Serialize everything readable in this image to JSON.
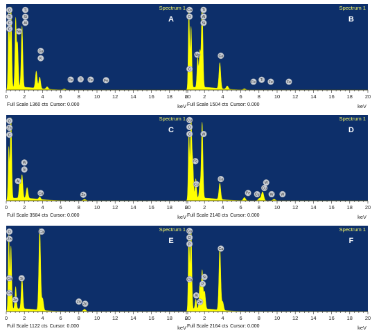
{
  "colors": {
    "plot_bg": "#0d2f6a",
    "spectrum": "#ffff00",
    "spectrum_label": "#ffff66",
    "peak_fill": "#c9cfd8",
    "peak_text": "#2a2a2a",
    "letter": "#ffffff",
    "axis": "#222222"
  },
  "chart_data": [
    {
      "type": "area",
      "panel_letter": "A",
      "title": "Spectrum 1",
      "xlabel": "keV",
      "xlim": [
        0,
        20
      ],
      "x_ticks": [
        "0",
        "2",
        "4",
        "6",
        "8",
        "10",
        "12",
        "14",
        "16",
        "18",
        "20"
      ],
      "status": {
        "full_scale_text": "Full Scale 1360 cts",
        "cursor_text": "Cursor: 0.000"
      },
      "ylim": [
        0,
        1360
      ],
      "peaks": [
        {
          "x": 0.28,
          "y": 1250,
          "w": 0.07
        },
        {
          "x": 0.52,
          "y": 1360,
          "w": 0.08
        },
        {
          "x": 1.04,
          "y": 1120,
          "w": 0.08
        },
        {
          "x": 1.25,
          "y": 700,
          "w": 0.08
        },
        {
          "x": 1.74,
          "y": 1000,
          "w": 0.09
        },
        {
          "x": 3.31,
          "y": 280,
          "w": 0.1
        },
        {
          "x": 3.69,
          "y": 190,
          "w": 0.1
        },
        {
          "x": 4.51,
          "y": 40,
          "w": 0.12
        },
        {
          "x": 6.4,
          "y": 15,
          "w": 0.12
        }
      ],
      "labels": [
        {
          "text": "O",
          "x": 0.35,
          "y": 1310
        },
        {
          "text": "Ti",
          "x": 2.1,
          "y": 1310
        },
        {
          "text": "Ti",
          "x": 0.35,
          "y": 1200
        },
        {
          "text": "Si",
          "x": 2.1,
          "y": 1200
        },
        {
          "text": "C",
          "x": 0.35,
          "y": 1100
        },
        {
          "text": "Al",
          "x": 2.1,
          "y": 1100
        },
        {
          "text": "Na",
          "x": 1.4,
          "y": 960
        },
        {
          "text": "C",
          "x": 0.35,
          "y": 1000
        },
        {
          "text": "Ca",
          "x": 3.8,
          "y": 640
        },
        {
          "text": "K",
          "x": 3.8,
          "y": 520
        },
        {
          "text": "Fe",
          "x": 7.1,
          "y": 170
        },
        {
          "text": "Ti",
          "x": 8.2,
          "y": 175
        },
        {
          "text": "Fe",
          "x": 9.3,
          "y": 170
        },
        {
          "text": "Fe",
          "x": 11.0,
          "y": 160
        }
      ]
    },
    {
      "type": "area",
      "panel_letter": "B",
      "title": "Spectrum 1",
      "xlabel": "keV",
      "xlim": [
        0,
        20
      ],
      "x_ticks": [
        "0",
        "2",
        "4",
        "6",
        "8",
        "10",
        "12",
        "14",
        "16",
        "18",
        "20"
      ],
      "status": {
        "full_scale_text": "Full Scale 1504 cts",
        "cursor_text": "Cursor: 0.000"
      },
      "ylim": [
        0,
        1504
      ],
      "peaks": [
        {
          "x": 0.28,
          "y": 1450,
          "w": 0.07
        },
        {
          "x": 0.52,
          "y": 1100,
          "w": 0.08
        },
        {
          "x": 1.25,
          "y": 540,
          "w": 0.08
        },
        {
          "x": 1.49,
          "y": 640,
          "w": 0.08
        },
        {
          "x": 1.74,
          "y": 1504,
          "w": 0.09
        },
        {
          "x": 3.69,
          "y": 470,
          "w": 0.1
        },
        {
          "x": 4.51,
          "y": 60,
          "w": 0.12
        },
        {
          "x": 6.4,
          "y": 20,
          "w": 0.12
        }
      ],
      "labels": [
        {
          "text": "Ca",
          "x": 0.35,
          "y": 1450
        },
        {
          "text": "Ti",
          "x": 1.9,
          "y": 1450
        },
        {
          "text": "O",
          "x": 0.35,
          "y": 1330
        },
        {
          "text": "Al",
          "x": 1.9,
          "y": 1330
        },
        {
          "text": "Si",
          "x": 1.9,
          "y": 1215
        },
        {
          "text": "Mg",
          "x": 1.2,
          "y": 640
        },
        {
          "text": "C",
          "x": 0.35,
          "y": 380
        },
        {
          "text": "Ca",
          "x": 3.8,
          "y": 620
        },
        {
          "text": "Fe",
          "x": 7.4,
          "y": 150
        },
        {
          "text": "Ti",
          "x": 8.3,
          "y": 185
        },
        {
          "text": "Fe",
          "x": 9.3,
          "y": 150
        },
        {
          "text": "Fe",
          "x": 11.3,
          "y": 150
        }
      ]
    },
    {
      "type": "area",
      "panel_letter": "C",
      "title": "Spectrum 1",
      "xlabel": "keV",
      "xlim": [
        0,
        20
      ],
      "x_ticks": [
        "0",
        "2",
        "4",
        "6",
        "8",
        "10",
        "12",
        "14",
        "16",
        "18",
        "20"
      ],
      "status": {
        "full_scale_text": "Full Scale 3584 cts",
        "cursor_text": "Cursor: 0.000"
      },
      "ylim": [
        0,
        3584
      ],
      "peaks": [
        {
          "x": 0.28,
          "y": 2200,
          "w": 0.07
        },
        {
          "x": 0.52,
          "y": 3584,
          "w": 0.08
        },
        {
          "x": 1.49,
          "y": 750,
          "w": 0.08
        },
        {
          "x": 1.74,
          "y": 1000,
          "w": 0.09
        },
        {
          "x": 2.3,
          "y": 460,
          "w": 0.1
        },
        {
          "x": 3.69,
          "y": 110,
          "w": 0.1
        },
        {
          "x": 8.63,
          "y": 60,
          "w": 0.14
        }
      ],
      "labels": [
        {
          "text": "O",
          "x": 0.35,
          "y": 3450
        },
        {
          "text": "Zn",
          "x": 0.35,
          "y": 3150
        },
        {
          "text": "C",
          "x": 0.35,
          "y": 2850
        },
        {
          "text": "W",
          "x": 2.0,
          "y": 1650
        },
        {
          "text": "Si",
          "x": 2.0,
          "y": 1350
        },
        {
          "text": "Al",
          "x": 1.3,
          "y": 850
        },
        {
          "text": "Ca",
          "x": 3.8,
          "y": 330
        },
        {
          "text": "Zn",
          "x": 8.5,
          "y": 260
        }
      ]
    },
    {
      "type": "area",
      "panel_letter": "D",
      "title": "Spectrum 1",
      "xlabel": "keV",
      "xlim": [
        0,
        20
      ],
      "x_ticks": [
        "0",
        "2",
        "4",
        "6",
        "8",
        "10",
        "12",
        "14",
        "16",
        "18",
        "20"
      ],
      "status": {
        "full_scale_text": "Full Scale 2140 cts",
        "cursor_text": "Cursor: 0.000"
      },
      "ylim": [
        0,
        2140
      ],
      "peaks": [
        {
          "x": 0.28,
          "y": 1700,
          "w": 0.07
        },
        {
          "x": 0.52,
          "y": 2050,
          "w": 0.08
        },
        {
          "x": 0.71,
          "y": 900,
          "w": 0.08
        },
        {
          "x": 1.04,
          "y": 500,
          "w": 0.08
        },
        {
          "x": 1.49,
          "y": 350,
          "w": 0.08
        },
        {
          "x": 1.74,
          "y": 1950,
          "w": 0.09
        },
        {
          "x": 3.69,
          "y": 420,
          "w": 0.1
        },
        {
          "x": 6.4,
          "y": 80,
          "w": 0.12
        },
        {
          "x": 8.04,
          "y": 60,
          "w": 0.13
        },
        {
          "x": 8.4,
          "y": 230,
          "w": 0.13
        },
        {
          "x": 9.67,
          "y": 40,
          "w": 0.14
        }
      ],
      "labels": [
        {
          "text": "Cu",
          "x": 0.35,
          "y": 2080
        },
        {
          "text": "O",
          "x": 0.35,
          "y": 1900
        },
        {
          "text": "C",
          "x": 0.35,
          "y": 1720
        },
        {
          "text": "W",
          "x": 1.9,
          "y": 1720
        },
        {
          "text": "Fe",
          "x": 1.0,
          "y": 1020
        },
        {
          "text": "Cu",
          "x": 1.1,
          "y": 430
        },
        {
          "text": "Ca",
          "x": 3.8,
          "y": 560
        },
        {
          "text": "Fe",
          "x": 6.8,
          "y": 200
        },
        {
          "text": "Cu",
          "x": 7.8,
          "y": 170
        },
        {
          "text": "W",
          "x": 8.8,
          "y": 470
        },
        {
          "text": "Cu",
          "x": 8.6,
          "y": 330
        },
        {
          "text": "W",
          "x": 9.4,
          "y": 170
        },
        {
          "text": "W",
          "x": 10.6,
          "y": 170
        }
      ]
    },
    {
      "type": "area",
      "panel_letter": "E",
      "title": "Spectrum 1",
      "xlabel": "keV",
      "xlim": [
        0,
        20
      ],
      "x_ticks": [
        "0",
        "2",
        "4",
        "6",
        "8",
        "10",
        "12",
        "14",
        "16",
        "18",
        "20"
      ],
      "status": {
        "full_scale_text": "Full Scale 1122 cts",
        "cursor_text": "Cursor: 0.000"
      },
      "ylim": [
        0,
        1122
      ],
      "peaks": [
        {
          "x": 0.28,
          "y": 1000,
          "w": 0.07
        },
        {
          "x": 0.52,
          "y": 850,
          "w": 0.08
        },
        {
          "x": 1.04,
          "y": 300,
          "w": 0.08
        },
        {
          "x": 1.74,
          "y": 420,
          "w": 0.09
        },
        {
          "x": 3.69,
          "y": 1110,
          "w": 0.1
        },
        {
          "x": 4.01,
          "y": 160,
          "w": 0.1
        },
        {
          "x": 8.63,
          "y": 30,
          "w": 0.14
        }
      ],
      "labels": [
        {
          "text": "O",
          "x": 0.35,
          "y": 1080
        },
        {
          "text": "Ca",
          "x": 3.9,
          "y": 1080
        },
        {
          "text": "Zn",
          "x": 0.35,
          "y": 980
        },
        {
          "text": "Ca",
          "x": 0.35,
          "y": 450
        },
        {
          "text": "Si",
          "x": 1.7,
          "y": 450
        },
        {
          "text": "Ca",
          "x": 0.35,
          "y": 250
        },
        {
          "text": "Zn",
          "x": 1.0,
          "y": 160
        },
        {
          "text": "Zn",
          "x": 8.0,
          "y": 135
        },
        {
          "text": "Zn",
          "x": 8.7,
          "y": 105
        }
      ]
    },
    {
      "type": "area",
      "panel_letter": "F",
      "title": "Spectrum 1",
      "xlabel": "keV",
      "xlim": [
        0,
        20
      ],
      "x_ticks": [
        "0",
        "2",
        "4",
        "6",
        "8",
        "10",
        "12",
        "14",
        "16",
        "18",
        "20"
      ],
      "status": {
        "full_scale_text": "Full Scale 2164 cts",
        "cursor_text": "Cursor: 0.000"
      },
      "ylim": [
        0,
        2164
      ],
      "peaks": [
        {
          "x": 0.28,
          "y": 2050,
          "w": 0.07
        },
        {
          "x": 0.52,
          "y": 2164,
          "w": 0.08
        },
        {
          "x": 1.04,
          "y": 250,
          "w": 0.08
        },
        {
          "x": 1.49,
          "y": 650,
          "w": 0.08
        },
        {
          "x": 1.74,
          "y": 1000,
          "w": 0.09
        },
        {
          "x": 2.01,
          "y": 450,
          "w": 0.1
        },
        {
          "x": 3.69,
          "y": 1650,
          "w": 0.1
        },
        {
          "x": 4.01,
          "y": 220,
          "w": 0.1
        }
      ],
      "labels": [
        {
          "text": "Ca",
          "x": 0.35,
          "y": 2100
        },
        {
          "text": "O",
          "x": 0.35,
          "y": 1930
        },
        {
          "text": "P",
          "x": 0.35,
          "y": 1760
        },
        {
          "text": "Ca",
          "x": 3.8,
          "y": 1640
        },
        {
          "text": "Si",
          "x": 2.0,
          "y": 900
        },
        {
          "text": "P",
          "x": 1.8,
          "y": 720
        },
        {
          "text": "Ca",
          "x": 0.35,
          "y": 840
        },
        {
          "text": "Al",
          "x": 1.1,
          "y": 420
        },
        {
          "text": "Zn",
          "x": 1.5,
          "y": 250
        }
      ]
    }
  ]
}
